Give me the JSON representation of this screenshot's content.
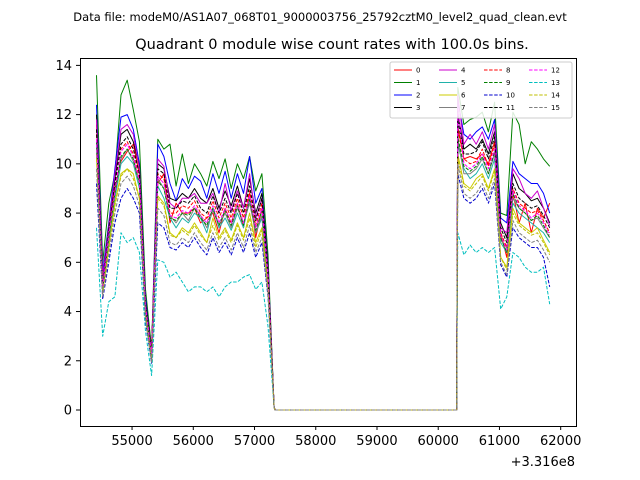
{
  "suptitle": "Data file: modeM0/AS1A07_068T01_9000003756_25792cztM0_level2_quad_clean.evt",
  "chart_data": {
    "type": "line",
    "title": "Quadrant 0 module wise count rates with 100.0s bins.",
    "xlabel": "",
    "ylabel": "",
    "x_offset_label": "+3.316e8",
    "xlim": [
      54150,
      62250
    ],
    "ylim": [
      -0.65,
      14.3
    ],
    "xticks": [
      55000,
      56000,
      57000,
      58000,
      59000,
      60000,
      61000,
      62000
    ],
    "xtick_labels": [
      "55000",
      "56000",
      "57000",
      "58000",
      "59000",
      "60000",
      "61000",
      "62000"
    ],
    "yticks": [
      0,
      2,
      4,
      6,
      8,
      10,
      12,
      14
    ],
    "ytick_labels": [
      "0",
      "2",
      "4",
      "6",
      "8",
      "10",
      "12",
      "14"
    ],
    "x": [
      54420,
      54520,
      54620,
      54720,
      54820,
      54920,
      55020,
      55120,
      55220,
      55320,
      55420,
      55520,
      55620,
      55720,
      55820,
      55920,
      56020,
      56120,
      56220,
      56320,
      56420,
      56520,
      56620,
      56720,
      56820,
      56920,
      57020,
      57120,
      57220,
      57320,
      57340,
      60300,
      60320,
      60420,
      60520,
      60620,
      60720,
      60820,
      60920,
      61020,
      61120,
      61220,
      61320,
      61420,
      61520,
      61620,
      61720,
      61820
    ],
    "series": [
      {
        "name": "0",
        "color": "#ff0000",
        "dash": "solid",
        "values": [
          11.6,
          5.2,
          7.4,
          9.0,
          10.1,
          10.5,
          10.8,
          9.6,
          4.0,
          2.6,
          9.2,
          9.6,
          7.6,
          8.4,
          8.0,
          8.0,
          8.2,
          7.6,
          7.8,
          8.0,
          7.2,
          8.2,
          7.6,
          8.4,
          7.4,
          8.8,
          7.0,
          8.2,
          5.5,
          0.1,
          0.0,
          0.0,
          11.5,
          10.2,
          10.3,
          10.2,
          10.4,
          10.0,
          10.9,
          7.2,
          6.2,
          8.8,
          7.6,
          8.4,
          7.2,
          8.2,
          7.8,
          8.4
        ]
      },
      {
        "name": "1",
        "color": "#008000",
        "dash": "solid",
        "values": [
          13.6,
          6.0,
          8.4,
          9.6,
          12.8,
          13.4,
          12.2,
          10.9,
          4.9,
          2.5,
          11.0,
          10.6,
          10.8,
          9.1,
          10.4,
          9.2,
          10.0,
          9.6,
          9.1,
          10.1,
          9.4,
          10.2,
          9.0,
          10.0,
          9.4,
          10.3,
          8.9,
          9.6,
          6.3,
          0.1,
          0.0,
          0.0,
          13.1,
          11.6,
          11.8,
          11.9,
          12.1,
          11.3,
          12.5,
          8.0,
          7.9,
          12.1,
          11.6,
          10.0,
          10.9,
          10.6,
          10.2,
          9.9
        ]
      },
      {
        "name": "2",
        "color": "#0000ff",
        "dash": "solid",
        "values": [
          12.4,
          5.6,
          7.6,
          9.8,
          11.9,
          12.0,
          11.4,
          10.0,
          4.6,
          2.3,
          10.8,
          10.3,
          9.2,
          8.5,
          9.4,
          9.0,
          9.5,
          9.3,
          8.6,
          9.6,
          8.8,
          9.7,
          8.6,
          9.6,
          8.8,
          10.3,
          8.4,
          9.0,
          5.9,
          0.1,
          0.0,
          0.0,
          12.6,
          11.2,
          11.0,
          11.3,
          11.5,
          11.0,
          11.8,
          7.8,
          7.6,
          10.1,
          9.6,
          9.4,
          9.2,
          9.2,
          8.8,
          8.0
        ]
      },
      {
        "name": "3",
        "color": "#000000",
        "dash": "solid",
        "values": [
          12.0,
          5.3,
          7.5,
          9.4,
          11.2,
          11.4,
          10.9,
          9.9,
          4.4,
          2.4,
          10.0,
          9.8,
          8.6,
          8.5,
          8.8,
          8.6,
          9.0,
          8.6,
          8.4,
          9.0,
          8.2,
          8.9,
          8.3,
          9.1,
          8.2,
          9.4,
          8.0,
          8.8,
          5.8,
          0.1,
          0.0,
          0.0,
          12.1,
          10.6,
          10.8,
          10.6,
          11.0,
          10.4,
          11.3,
          7.6,
          7.0,
          9.6,
          9.0,
          8.8,
          8.5,
          8.6,
          8.2,
          7.6
        ]
      },
      {
        "name": "4",
        "color": "#cc00cc",
        "dash": "solid",
        "values": [
          11.8,
          5.4,
          7.4,
          9.6,
          11.4,
          11.6,
          11.2,
          9.8,
          4.3,
          2.3,
          10.2,
          9.9,
          8.4,
          8.2,
          8.6,
          8.6,
          8.8,
          8.4,
          8.4,
          8.8,
          8.0,
          9.2,
          8.1,
          8.9,
          8.2,
          9.6,
          7.8,
          8.6,
          5.7,
          0.1,
          0.0,
          0.0,
          12.8,
          10.8,
          11.2,
          10.8,
          11.3,
          10.6,
          11.6,
          7.4,
          7.2,
          9.8,
          9.4,
          8.8,
          8.6,
          8.9,
          8.2,
          7.5
        ]
      },
      {
        "name": "5",
        "color": "#20b2aa",
        "dash": "solid",
        "values": [
          10.8,
          5.0,
          6.8,
          8.6,
          10.0,
          10.3,
          10.0,
          9.0,
          4.0,
          2.2,
          9.1,
          8.6,
          7.8,
          7.4,
          7.8,
          7.6,
          8.0,
          7.8,
          7.2,
          8.2,
          7.4,
          7.8,
          7.3,
          8.0,
          7.4,
          8.6,
          7.2,
          7.8,
          5.2,
          0.1,
          0.0,
          0.0,
          10.8,
          9.8,
          9.4,
          9.6,
          10.0,
          9.4,
          10.2,
          6.8,
          6.4,
          8.4,
          8.0,
          7.8,
          7.6,
          7.4,
          7.2,
          6.8
        ]
      },
      {
        "name": "6",
        "color": "#cccc00",
        "dash": "solid",
        "values": [
          10.4,
          4.8,
          6.6,
          8.4,
          9.6,
          9.8,
          9.6,
          8.6,
          3.9,
          2.1,
          8.7,
          8.4,
          7.2,
          7.0,
          7.4,
          7.2,
          7.6,
          7.2,
          6.8,
          7.8,
          7.0,
          7.4,
          6.9,
          7.6,
          7.0,
          8.0,
          6.8,
          7.4,
          5.0,
          0.1,
          0.0,
          0.0,
          10.4,
          9.2,
          9.0,
          9.4,
          9.6,
          9.0,
          9.8,
          6.2,
          5.8,
          8.2,
          7.6,
          7.4,
          7.2,
          7.4,
          6.9,
          6.4
        ]
      },
      {
        "name": "7",
        "color": "#808080",
        "dash": "solid",
        "values": [
          10.6,
          5.1,
          7.0,
          8.8,
          10.2,
          10.6,
          10.1,
          9.2,
          4.1,
          2.2,
          9.4,
          9.0,
          7.9,
          7.6,
          8.0,
          7.7,
          8.2,
          7.9,
          7.4,
          8.1,
          7.5,
          8.0,
          7.4,
          8.2,
          7.6,
          8.4,
          7.2,
          7.9,
          5.3,
          0.1,
          0.0,
          0.0,
          11.0,
          9.6,
          9.6,
          9.8,
          10.2,
          9.6,
          10.4,
          6.9,
          6.6,
          8.6,
          8.2,
          8.0,
          7.7,
          7.8,
          7.4,
          7.0
        ]
      },
      {
        "name": "8",
        "color": "#ff0000",
        "dash": "dashed",
        "values": [
          11.2,
          5.0,
          7.2,
          9.0,
          10.6,
          10.9,
          10.4,
          9.4,
          4.2,
          2.4,
          9.6,
          9.4,
          8.0,
          8.0,
          8.3,
          8.2,
          8.5,
          8.0,
          7.8,
          8.5,
          7.8,
          8.4,
          7.8,
          8.6,
          7.8,
          8.9,
          7.5,
          8.4,
          5.5,
          0.1,
          0.0,
          0.0,
          11.4,
          10.2,
          10.0,
          10.1,
          10.6,
          9.9,
          10.8,
          7.2,
          6.6,
          9.0,
          8.4,
          8.2,
          8.0,
          8.1,
          7.7,
          7.2
        ]
      },
      {
        "name": "9",
        "color": "#008000",
        "dash": "dashed",
        "values": [
          10.9,
          4.9,
          7.0,
          8.8,
          10.3,
          10.6,
          10.2,
          9.2,
          4.1,
          2.2,
          9.3,
          9.0,
          7.8,
          7.7,
          8.0,
          7.9,
          8.2,
          7.8,
          7.5,
          8.2,
          7.5,
          8.1,
          7.5,
          8.3,
          7.5,
          8.6,
          7.3,
          8.1,
          5.3,
          0.1,
          0.0,
          0.0,
          11.1,
          9.9,
          9.7,
          9.9,
          10.3,
          9.6,
          10.5,
          7.0,
          6.4,
          8.8,
          8.2,
          8.0,
          7.7,
          7.9,
          7.5,
          7.0
        ]
      },
      {
        "name": "10",
        "color": "#0000cc",
        "dash": "dashed",
        "values": [
          9.2,
          4.5,
          6.0,
          7.6,
          8.6,
          9.0,
          8.6,
          8.0,
          3.6,
          1.9,
          7.6,
          7.4,
          6.6,
          6.5,
          6.8,
          6.6,
          7.0,
          6.6,
          6.3,
          7.0,
          6.4,
          6.8,
          6.3,
          7.0,
          6.4,
          7.2,
          6.2,
          6.8,
          4.6,
          0.1,
          0.0,
          0.0,
          9.6,
          8.6,
          8.4,
          8.6,
          9.0,
          8.4,
          9.2,
          5.9,
          5.4,
          7.4,
          7.0,
          6.8,
          6.6,
          6.6,
          6.2,
          5.0
        ]
      },
      {
        "name": "11",
        "color": "#000000",
        "dash": "dashed",
        "values": [
          11.4,
          5.1,
          7.3,
          9.2,
          10.8,
          11.1,
          10.6,
          9.6,
          4.3,
          2.4,
          9.8,
          9.6,
          8.2,
          8.2,
          8.5,
          8.4,
          8.7,
          8.2,
          8.0,
          8.7,
          8.0,
          8.6,
          8.0,
          8.8,
          8.0,
          9.1,
          7.7,
          8.6,
          5.6,
          0.1,
          0.0,
          0.0,
          11.8,
          10.4,
          10.4,
          10.5,
          10.9,
          10.2,
          11.1,
          7.4,
          6.8,
          9.2,
          8.6,
          8.4,
          8.2,
          8.3,
          7.9,
          7.4
        ]
      },
      {
        "name": "12",
        "color": "#ff00ff",
        "dash": "dashed",
        "values": [
          11.0,
          5.0,
          7.1,
          8.9,
          10.5,
          10.8,
          10.3,
          9.3,
          4.2,
          2.3,
          9.5,
          9.2,
          7.9,
          7.8,
          8.1,
          8.0,
          8.3,
          7.9,
          7.6,
          8.3,
          7.6,
          8.2,
          7.6,
          8.4,
          7.6,
          8.7,
          7.4,
          8.2,
          5.4,
          0.1,
          0.0,
          0.0,
          12.4,
          10.0,
          9.8,
          10.0,
          10.4,
          9.8,
          10.6,
          7.1,
          6.5,
          8.9,
          8.3,
          8.1,
          7.8,
          8.0,
          7.6,
          7.1
        ]
      },
      {
        "name": "13",
        "color": "#00bfbf",
        "dash": "dashed",
        "values": [
          7.4,
          3.0,
          4.4,
          4.6,
          7.2,
          6.8,
          7.0,
          6.4,
          3.2,
          1.4,
          6.1,
          6.0,
          5.4,
          5.6,
          5.2,
          4.8,
          5.0,
          5.0,
          4.8,
          5.0,
          4.6,
          5.0,
          5.2,
          5.2,
          5.4,
          5.5,
          4.9,
          5.2,
          3.4,
          0.1,
          0.0,
          0.0,
          7.2,
          6.3,
          6.7,
          6.4,
          6.6,
          6.4,
          6.6,
          4.1,
          4.6,
          6.4,
          6.2,
          5.8,
          5.6,
          5.6,
          5.8,
          4.3
        ]
      },
      {
        "name": "14",
        "color": "#bfbf00",
        "dash": "dashed",
        "values": [
          10.2,
          4.7,
          6.6,
          8.3,
          9.5,
          9.8,
          9.4,
          8.6,
          3.8,
          2.0,
          8.6,
          8.3,
          7.1,
          7.0,
          7.3,
          7.1,
          7.5,
          7.1,
          6.8,
          7.5,
          6.9,
          7.3,
          6.8,
          7.5,
          6.9,
          7.8,
          6.6,
          7.3,
          4.9,
          0.1,
          0.0,
          0.0,
          10.2,
          9.1,
          8.9,
          9.2,
          9.5,
          8.9,
          9.7,
          6.2,
          5.7,
          8.0,
          7.5,
          7.3,
          7.1,
          7.2,
          6.8,
          6.3
        ]
      },
      {
        "name": "15",
        "color": "#808080",
        "dash": "dashed",
        "values": [
          9.8,
          4.6,
          6.3,
          8.0,
          9.2,
          9.5,
          9.1,
          8.3,
          3.7,
          1.9,
          8.2,
          7.9,
          6.8,
          6.7,
          7.0,
          6.8,
          7.2,
          6.8,
          6.5,
          7.2,
          6.6,
          7.0,
          6.5,
          7.2,
          6.6,
          7.5,
          6.4,
          7.0,
          4.7,
          0.1,
          0.0,
          0.0,
          10.0,
          8.8,
          8.6,
          8.8,
          9.2,
          8.6,
          9.4,
          6.0,
          5.5,
          7.7,
          7.2,
          7.0,
          6.8,
          6.9,
          6.5,
          6.0
        ]
      }
    ],
    "legend_location": "top-right",
    "legend_columns": 4,
    "grid": false
  }
}
